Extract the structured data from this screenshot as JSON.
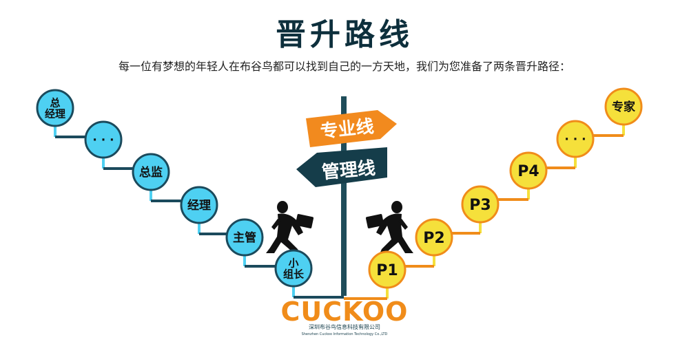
{
  "header": {
    "title": "晋升路线",
    "subtitle": "每一位有梦想的年轻人在布谷鸟都可以找到自己的一方天地，我们为您准备了两条晋升路径："
  },
  "signs": {
    "professional": "专业线",
    "management": "管理线"
  },
  "management_track": [
    {
      "label_lines": [
        "总",
        "经理"
      ]
    },
    {
      "label_lines": [
        "· · ·"
      ]
    },
    {
      "label_lines": [
        "总监"
      ]
    },
    {
      "label_lines": [
        "经理"
      ]
    },
    {
      "label_lines": [
        "主管"
      ]
    },
    {
      "label_lines": [
        "小",
        "组长"
      ]
    }
  ],
  "professional_track": [
    {
      "label_lines": [
        "P1"
      ]
    },
    {
      "label_lines": [
        "P2"
      ]
    },
    {
      "label_lines": [
        "P3"
      ]
    },
    {
      "label_lines": [
        "P4"
      ]
    },
    {
      "label_lines": [
        "· · ·"
      ]
    },
    {
      "label_lines": [
        "专家"
      ]
    }
  ],
  "logo": {
    "brand": "CUCKOO",
    "company_cn": "深圳布谷鸟信息科技有限公司",
    "company_en": "Shenzhen Cuckoo Information Technology Co.,LTD"
  },
  "colors": {
    "management": "#4ed0f2",
    "management_line": "#1b4a5c",
    "professional": "#f5e03b",
    "professional_line": "#f08c1a",
    "orange_sign": "#f28a1e",
    "dark_sign": "#153d4a",
    "title": "#0d2f3c"
  }
}
